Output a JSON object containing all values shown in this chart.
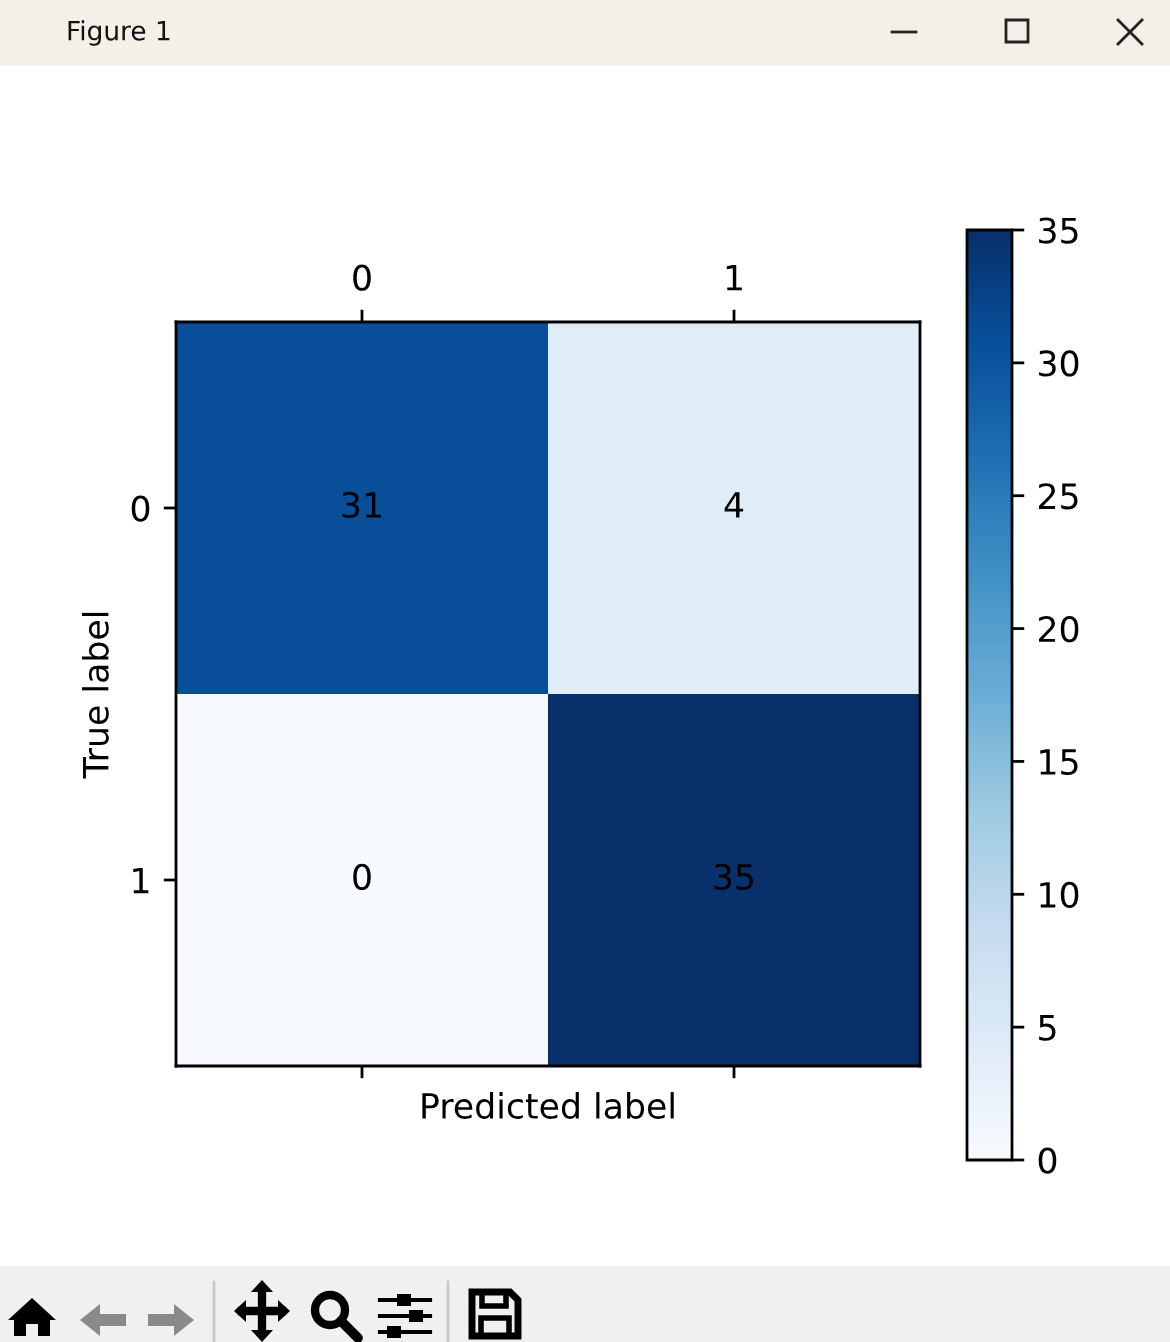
{
  "chart_data": {
    "type": "heatmap",
    "categories": [
      "0",
      "1"
    ],
    "y_categories": [
      "0",
      "1"
    ],
    "cells": [
      [
        31,
        4
      ],
      [
        0,
        35
      ]
    ],
    "xlabel": "Predicted label",
    "ylabel": "True label",
    "clim": [
      0,
      35
    ],
    "cticks": [
      0,
      5,
      10,
      15,
      20,
      25,
      30,
      35
    ],
    "data_labels": true,
    "annotations": [
      "Figure 1"
    ]
  }
}
